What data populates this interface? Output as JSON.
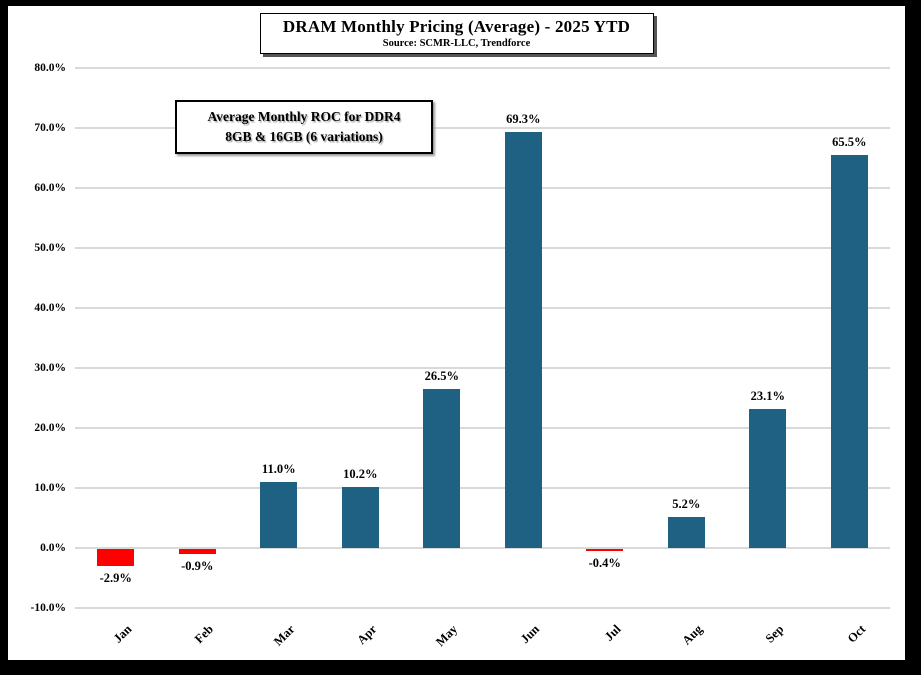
{
  "header": {
    "title": "DRAM Monthly Pricing (Average) - 2025 YTD",
    "source": "Source: SCMR-LLC, Trendforce"
  },
  "annotation": {
    "line1": "Average Monthly ROC for DDR4",
    "line2": "8GB & 16GB (6 variations)"
  },
  "colors": {
    "bar_positive": "#1E6183",
    "bar_negative": "#FF0000",
    "gridline": "#D9D9D9",
    "frame": "#000000",
    "background": "#FFFFFF"
  },
  "chart_data": {
    "type": "bar",
    "title": "DRAM Monthly Pricing (Average) - 2025 YTD",
    "subtitle": "Source: SCMR-LLC, Trendforce",
    "categories": [
      "Jan",
      "Feb",
      "Mar",
      "Apr",
      "May",
      "Jun",
      "Jul",
      "Aug",
      "Sep",
      "Oct"
    ],
    "values": [
      -2.9,
      -0.9,
      11.0,
      10.2,
      26.5,
      69.3,
      -0.4,
      5.2,
      23.1,
      65.5
    ],
    "labels": [
      "-2.9%",
      "-0.9%",
      "11.0%",
      "10.2%",
      "26.5%",
      "69.3%",
      "-0.4%",
      "5.2%",
      "23.1%",
      "65.5%"
    ],
    "ytick_labels": [
      "-10.0%",
      "0.0%",
      "10.0%",
      "20.0%",
      "30.0%",
      "40.0%",
      "50.0%",
      "60.0%",
      "70.0%",
      "80.0%"
    ],
    "ylim": [
      -10,
      80
    ],
    "ytick_step": 10,
    "xlabel": "",
    "ylabel": "",
    "grid": true,
    "legend": false
  }
}
